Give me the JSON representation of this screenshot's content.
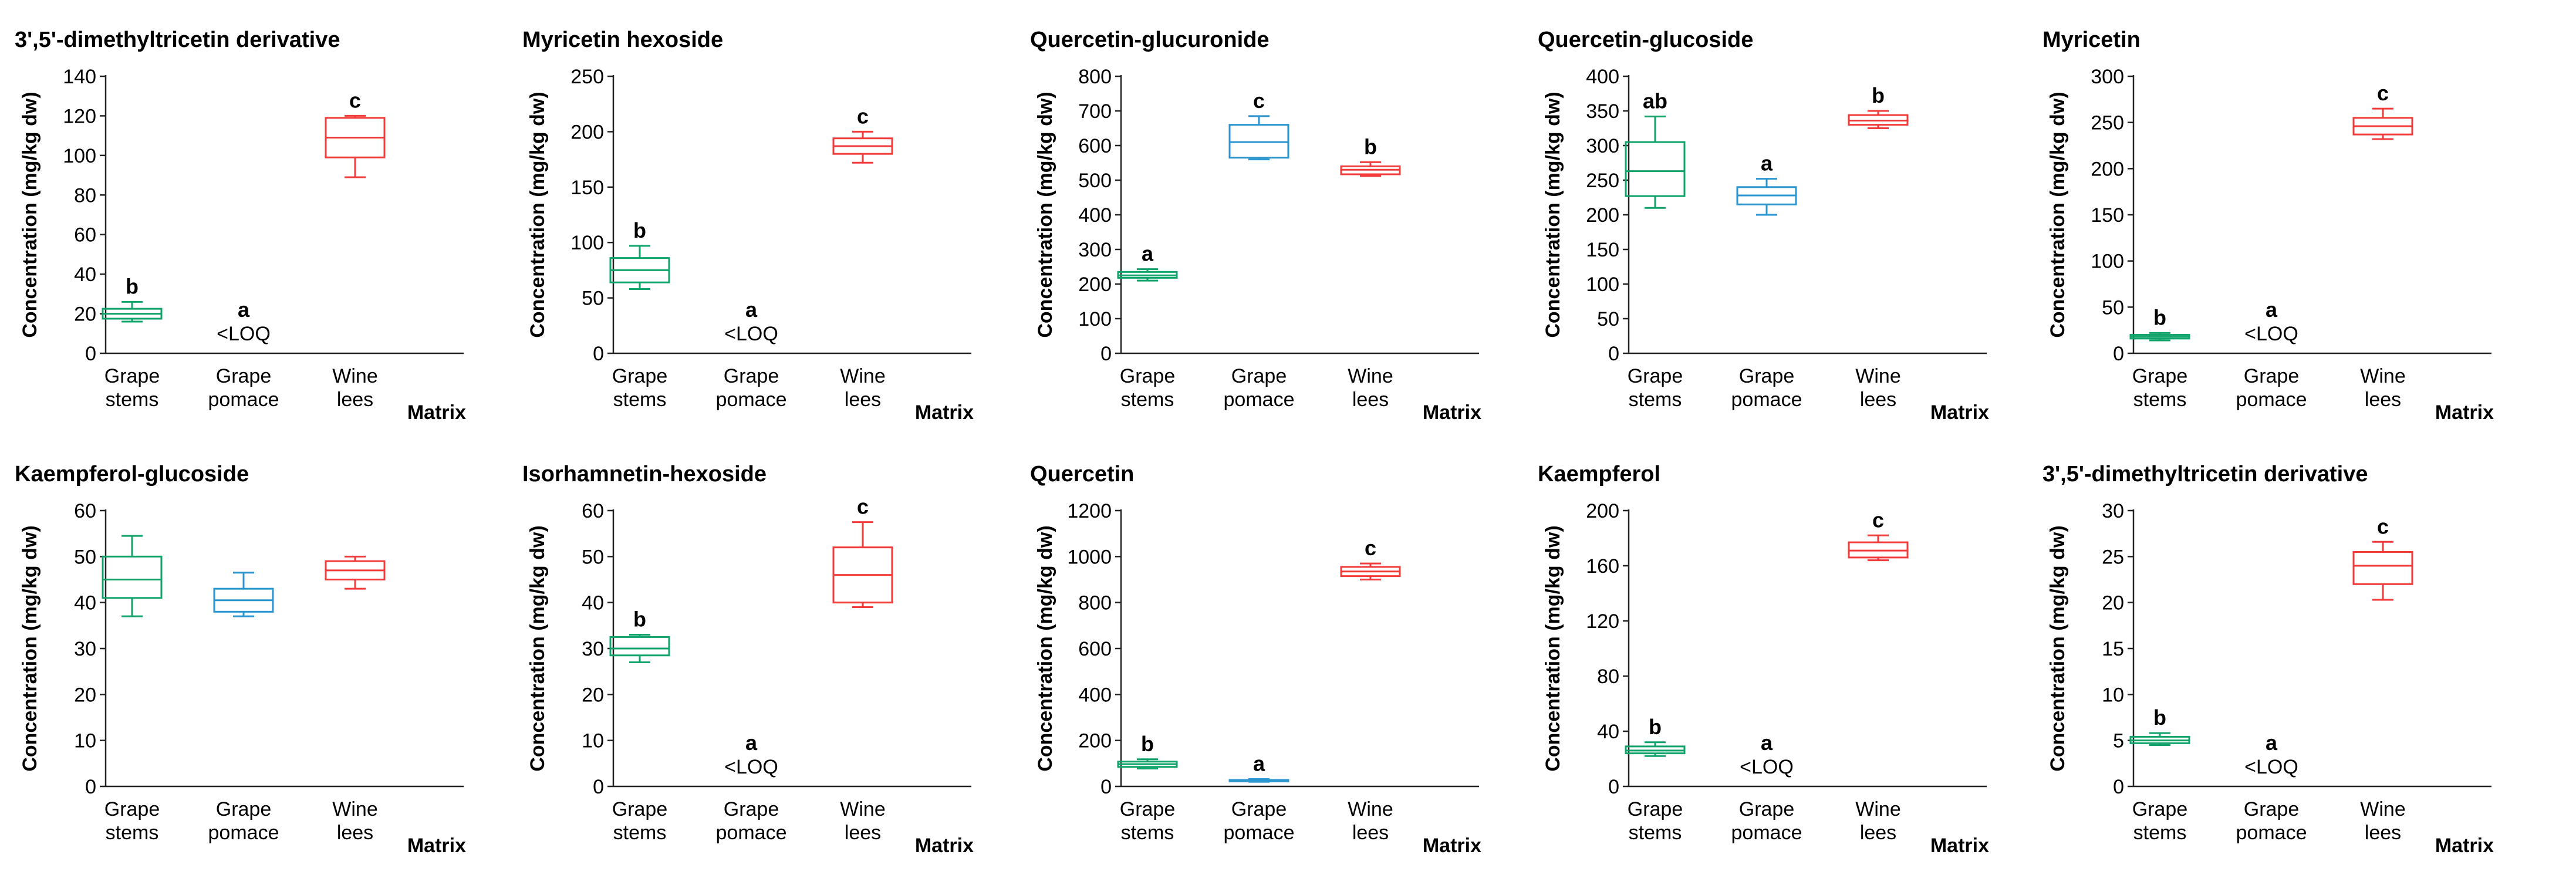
{
  "matrix_label": "Matrix",
  "ylabel": "Concentration (mg/kg dw)",
  "group_colors": {
    "Grape stems": "#10a36a",
    "Grape pomace": "#2a95cf",
    "Wine lees": "#f23b3b"
  },
  "chart_data": [
    {
      "type": "box",
      "title": "3',5'-dimethyltricetin derivative",
      "ylabel": "Concentration (mg/kg dw)",
      "xlabel": "Matrix",
      "ylim": [
        0,
        140
      ],
      "yticks": [
        0,
        20,
        40,
        60,
        80,
        100,
        120,
        140
      ],
      "categories": [
        [
          "Grape",
          "stems"
        ],
        [
          "Grape",
          "pomace"
        ],
        [
          "Wine",
          "lees"
        ]
      ],
      "boxes": [
        {
          "min": 16,
          "q1": 17.5,
          "median": 20,
          "q3": 22.5,
          "max": 26,
          "label": "b"
        },
        null,
        {
          "min": 89,
          "q1": 99,
          "median": 109,
          "q3": 119,
          "max": 120,
          "label": "c"
        }
      ],
      "annotations": [
        {
          "category": 1,
          "label": "a",
          "note": "<LOQ"
        }
      ]
    },
    {
      "type": "box",
      "title": "Myricetin hexoside",
      "ylabel": "Concentration (mg/kg dw)",
      "xlabel": "Matrix",
      "ylim": [
        0,
        250
      ],
      "yticks": [
        0,
        50,
        100,
        150,
        200,
        250
      ],
      "categories": [
        [
          "Grape",
          "stems"
        ],
        [
          "Grape",
          "pomace"
        ],
        [
          "Wine",
          "lees"
        ]
      ],
      "boxes": [
        {
          "min": 58,
          "q1": 64,
          "median": 75,
          "q3": 86,
          "max": 97,
          "label": "b"
        },
        null,
        {
          "min": 172,
          "q1": 180,
          "median": 187,
          "q3": 194,
          "max": 200,
          "label": "c"
        }
      ],
      "annotations": [
        {
          "category": 1,
          "label": "a",
          "note": "<LOQ"
        }
      ]
    },
    {
      "type": "box",
      "title": "Quercetin-glucuronide",
      "ylabel": "Concentration (mg/kg dw)",
      "xlabel": "Matrix",
      "ylim": [
        0,
        800
      ],
      "yticks": [
        0,
        100,
        200,
        300,
        400,
        500,
        600,
        700,
        800
      ],
      "categories": [
        [
          "Grape",
          "stems"
        ],
        [
          "Grape",
          "pomace"
        ],
        [
          "Wine",
          "lees"
        ]
      ],
      "boxes": [
        {
          "min": 210,
          "q1": 218,
          "median": 225,
          "q3": 235,
          "max": 243,
          "label": "a"
        },
        {
          "min": 560,
          "q1": 565,
          "median": 610,
          "q3": 660,
          "max": 685,
          "label": "c"
        },
        {
          "min": 512,
          "q1": 517,
          "median": 530,
          "q3": 540,
          "max": 552,
          "label": "b"
        }
      ],
      "annotations": []
    },
    {
      "type": "box",
      "title": "Quercetin-glucoside",
      "ylabel": "Concentration (mg/kg dw)",
      "xlabel": "Matrix",
      "ylim": [
        0,
        400
      ],
      "yticks": [
        0,
        50,
        100,
        150,
        200,
        250,
        300,
        350,
        400
      ],
      "categories": [
        [
          "Grape",
          "stems"
        ],
        [
          "Grape",
          "pomace"
        ],
        [
          "Wine",
          "lees"
        ]
      ],
      "boxes": [
        {
          "min": 210,
          "q1": 227,
          "median": 263,
          "q3": 305,
          "max": 342,
          "label": "ab"
        },
        {
          "min": 200,
          "q1": 215,
          "median": 228,
          "q3": 240,
          "max": 252,
          "label": "a"
        },
        {
          "min": 325,
          "q1": 330,
          "median": 336,
          "q3": 344,
          "max": 350,
          "label": "b"
        }
      ],
      "annotations": []
    },
    {
      "type": "box",
      "title": "Myricetin",
      "ylabel": "Concentration (mg/kg dw)",
      "xlabel": "Matrix",
      "ylim": [
        0,
        300
      ],
      "yticks": [
        0,
        50,
        100,
        150,
        200,
        250,
        300
      ],
      "categories": [
        [
          "Grape",
          "stems"
        ],
        [
          "Grape",
          "pomace"
        ],
        [
          "Wine",
          "lees"
        ]
      ],
      "boxes": [
        {
          "min": 14,
          "q1": 16,
          "median": 18,
          "q3": 20,
          "max": 22,
          "label": "b"
        },
        null,
        {
          "min": 232,
          "q1": 237,
          "median": 246,
          "q3": 255,
          "max": 265,
          "label": "c"
        }
      ],
      "annotations": [
        {
          "category": 1,
          "label": "a",
          "note": "<LOQ"
        }
      ]
    },
    {
      "type": "box",
      "title": "Kaempferol-glucoside",
      "ylabel": "Concentration (mg/kg dw)",
      "xlabel": "Matrix",
      "ylim": [
        0,
        60
      ],
      "yticks": [
        0,
        10,
        20,
        30,
        40,
        50,
        60
      ],
      "categories": [
        [
          "Grape",
          "stems"
        ],
        [
          "Grape",
          "pomace"
        ],
        [
          "Wine",
          "lees"
        ]
      ],
      "boxes": [
        {
          "min": 37,
          "q1": 41,
          "median": 45,
          "q3": 50,
          "max": 54.5,
          "label": ""
        },
        {
          "min": 37,
          "q1": 38,
          "median": 40.5,
          "q3": 43,
          "max": 46.5,
          "label": ""
        },
        {
          "min": 43,
          "q1": 45,
          "median": 47,
          "q3": 49,
          "max": 50,
          "label": ""
        }
      ],
      "annotations": []
    },
    {
      "type": "box",
      "title": "Isorhamnetin-hexoside",
      "ylabel": "Concentration (mg/kg dw)",
      "xlabel": "Matrix",
      "ylim": [
        0,
        60
      ],
      "yticks": [
        0,
        10,
        20,
        30,
        40,
        50,
        60
      ],
      "categories": [
        [
          "Grape",
          "stems"
        ],
        [
          "Grape",
          "pomace"
        ],
        [
          "Wine",
          "lees"
        ]
      ],
      "boxes": [
        {
          "min": 27,
          "q1": 28.5,
          "median": 30,
          "q3": 32.5,
          "max": 33,
          "label": "b"
        },
        null,
        {
          "min": 39,
          "q1": 40,
          "median": 46,
          "q3": 52,
          "max": 57.5,
          "label": "c"
        }
      ],
      "annotations": [
        {
          "category": 1,
          "label": "a",
          "note": "<LOQ"
        }
      ]
    },
    {
      "type": "box",
      "title": "Quercetin",
      "ylabel": "Concentration (mg/kg dw)",
      "xlabel": "Matrix",
      "ylim": [
        0,
        1200
      ],
      "yticks": [
        0,
        200,
        400,
        600,
        800,
        1000,
        1200
      ],
      "categories": [
        [
          "Grape",
          "stems"
        ],
        [
          "Grape",
          "pomace"
        ],
        [
          "Wine",
          "lees"
        ]
      ],
      "boxes": [
        {
          "min": 78,
          "q1": 85,
          "median": 97,
          "q3": 108,
          "max": 118,
          "label": "b"
        },
        {
          "min": 20,
          "q1": 22,
          "median": 25,
          "q3": 28,
          "max": 32,
          "label": "a"
        },
        {
          "min": 900,
          "q1": 915,
          "median": 935,
          "q3": 955,
          "max": 970,
          "label": "c"
        }
      ],
      "annotations": []
    },
    {
      "type": "box",
      "title": "Kaempferol",
      "ylabel": "Concentration (mg/kg dw)",
      "xlabel": "Matrix",
      "ylim": [
        0,
        200
      ],
      "yticks": [
        0,
        40,
        80,
        120,
        160,
        200
      ],
      "categories": [
        [
          "Grape",
          "stems"
        ],
        [
          "Grape",
          "pomace"
        ],
        [
          "Wine",
          "lees"
        ]
      ],
      "boxes": [
        {
          "min": 22,
          "q1": 24,
          "median": 26,
          "q3": 29,
          "max": 32,
          "label": "b"
        },
        null,
        {
          "min": 164,
          "q1": 166,
          "median": 171,
          "q3": 177,
          "max": 182,
          "label": "c"
        }
      ],
      "annotations": [
        {
          "category": 1,
          "label": "a",
          "note": "<LOQ"
        }
      ]
    },
    {
      "type": "box",
      "title": "3',5'-dimethyltricetin derivative",
      "ylabel": "Concentration (mg/kg dw)",
      "xlabel": "Matrix",
      "ylim": [
        0,
        30
      ],
      "yticks": [
        0,
        5,
        10,
        15,
        20,
        25,
        30
      ],
      "categories": [
        [
          "Grape",
          "stems"
        ],
        [
          "Grape",
          "pomace"
        ],
        [
          "Wine",
          "lees"
        ]
      ],
      "boxes": [
        {
          "min": 4.5,
          "q1": 4.7,
          "median": 5,
          "q3": 5.4,
          "max": 5.8,
          "label": "b"
        },
        null,
        {
          "min": 20.3,
          "q1": 22,
          "median": 24,
          "q3": 25.5,
          "max": 26.6,
          "label": "c"
        }
      ],
      "annotations": [
        {
          "category": 1,
          "label": "a",
          "note": "<LOQ"
        }
      ]
    }
  ]
}
